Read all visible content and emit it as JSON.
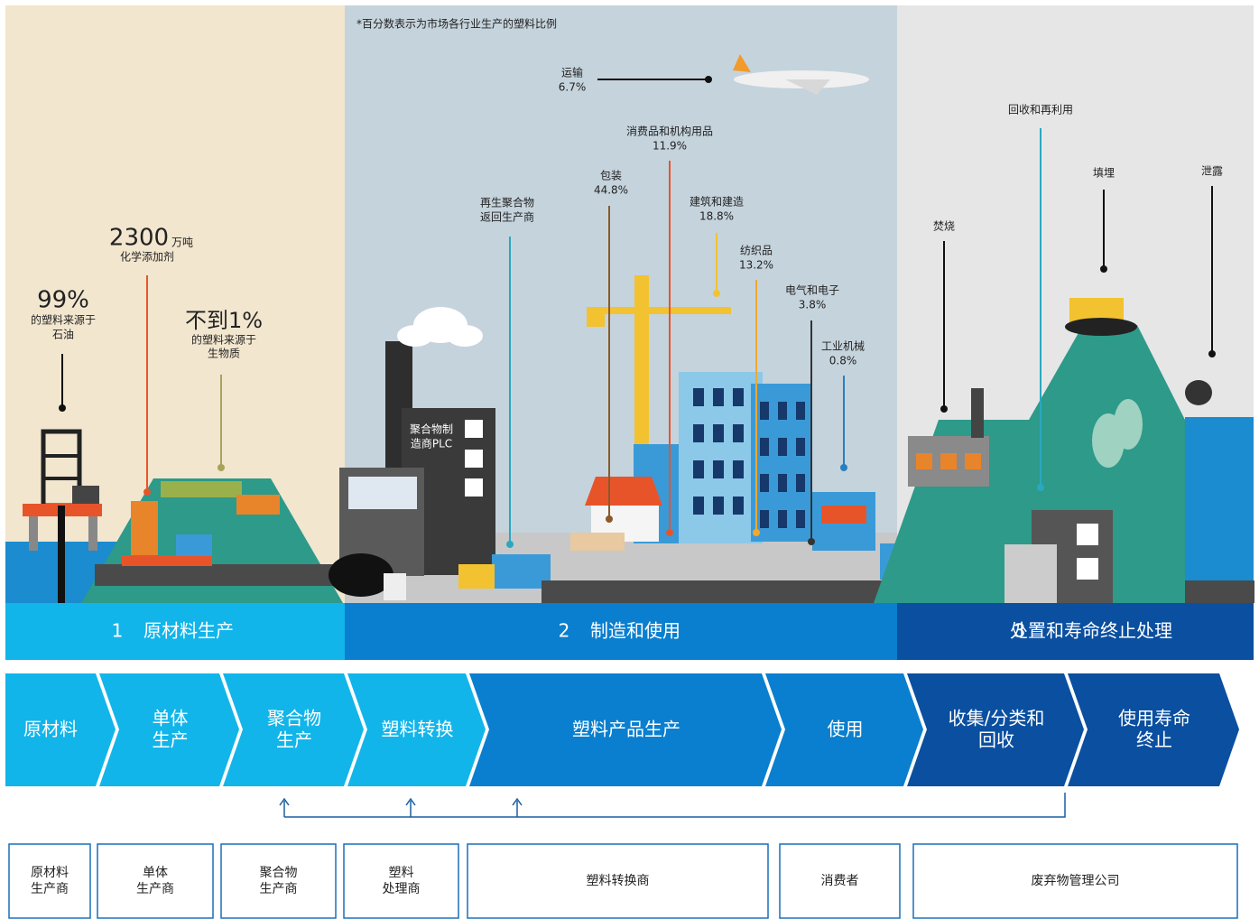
{
  "note": "*百分数表示为市场各行业生产的塑料比例",
  "raw_callouts": [
    {
      "big": "99%",
      "lines": [
        "的塑料来源于",
        "石油"
      ]
    },
    {
      "big": "2300",
      "unit": "万吨",
      "lines": [
        "化学添加剂"
      ]
    },
    {
      "big": "不到1%",
      "lines": [
        "的塑料来源于",
        "生物质"
      ]
    }
  ],
  "factory_label": [
    "聚合物制",
    "造商PLC"
  ],
  "recycled": [
    "再生聚合物",
    "返回生产商"
  ],
  "sectors": [
    {
      "name": "运输",
      "share": "6.7%"
    },
    {
      "name": "消费品和机构用品",
      "share": "11.9%"
    },
    {
      "name": "包装",
      "share": "44.8%"
    },
    {
      "name": "建筑和建造",
      "share": "18.8%"
    },
    {
      "name": "纺织品",
      "share": "13.2%"
    },
    {
      "name": "电气和电子",
      "share": "3.8%"
    },
    {
      "name": "工业机械",
      "share": "0.8%"
    }
  ],
  "end_of_life": [
    "回收和再利用",
    "填埋",
    "泄露",
    "焚烧"
  ],
  "stages": [
    {
      "number": "1",
      "name": "原材料生产"
    },
    {
      "number": "2",
      "name": "制造和使用"
    },
    {
      "number": "3",
      "name": "处置和寿命终止处理"
    }
  ],
  "steps": [
    [
      "原材料"
    ],
    [
      "单体",
      "生产"
    ],
    [
      "聚合物",
      "生产"
    ],
    [
      "塑料转换"
    ],
    [
      "塑料产品生产"
    ],
    [
      "使用"
    ],
    [
      "收集/分类和",
      "回收"
    ],
    [
      "使用寿命",
      "终止"
    ]
  ],
  "actors": [
    [
      "原材料",
      "生产商"
    ],
    [
      "单体",
      "生产商"
    ],
    [
      "聚合物",
      "生产商"
    ],
    [
      "塑料",
      "处理商"
    ],
    [
      "塑料转换商"
    ],
    [
      "消费者"
    ],
    [
      "废弃物管理公司"
    ]
  ]
}
